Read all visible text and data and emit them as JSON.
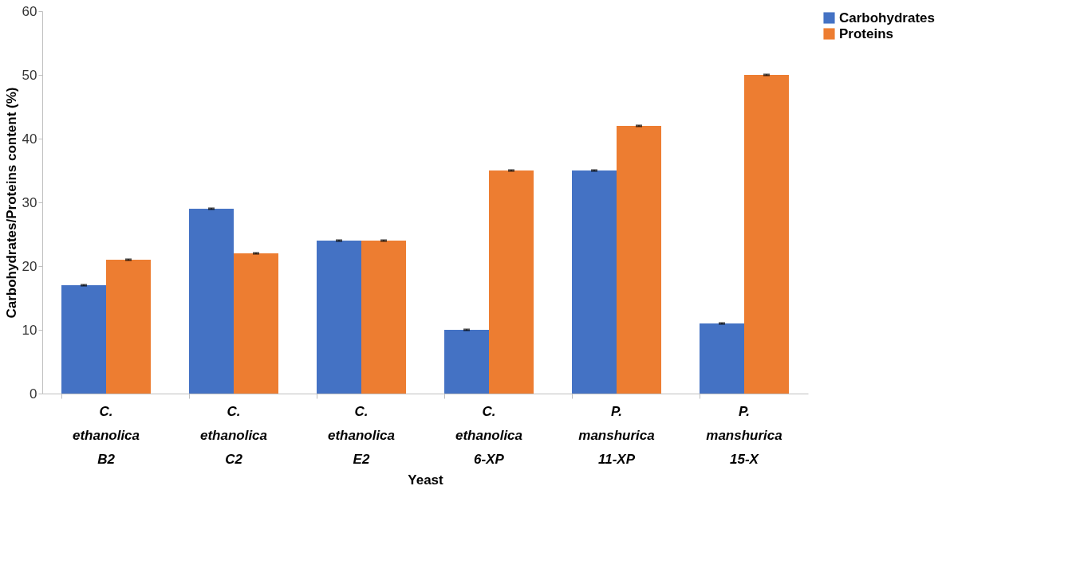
{
  "chart_data": {
    "type": "bar",
    "xlabel": "Yeast",
    "ylabel": "Carbohydrates/Proteins content (%)",
    "categories": [
      "C. ethanolica B2",
      "C. ethanolica C2",
      "C. ethanolica E2",
      "C. ethanolica 6-XP",
      "P. manshurica 11-XP",
      "P. manshurica 15-X"
    ],
    "series": [
      {
        "name": "Carbohydrates",
        "color": "#4472c4",
        "values": [
          17,
          29,
          24,
          10,
          35,
          11
        ],
        "errors": [
          0.1,
          0.1,
          0.1,
          0.1,
          0.1,
          0.1
        ]
      },
      {
        "name": "Proteins",
        "color": "#ed7d31",
        "values": [
          21,
          22,
          24,
          35,
          42,
          50
        ],
        "errors": [
          0.1,
          0.1,
          0.1,
          0.1,
          0.1,
          0.1
        ]
      }
    ],
    "ylim": [
      0,
      60
    ],
    "yticks": [
      0,
      10,
      20,
      30,
      40,
      50,
      60
    ],
    "grid": false,
    "legend": "right"
  }
}
